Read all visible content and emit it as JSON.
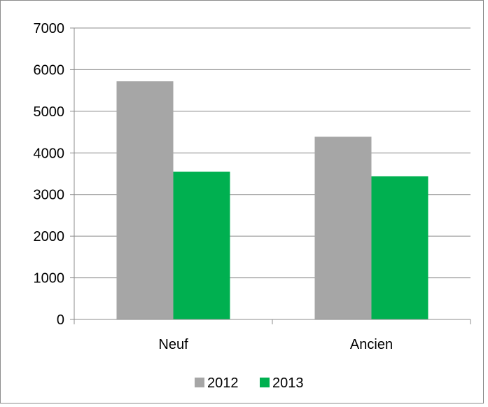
{
  "chart_data": {
    "type": "bar",
    "title": "",
    "xlabel": "",
    "ylabel": "",
    "categories": [
      "Neuf",
      "Ancien"
    ],
    "series": [
      {
        "name": "2012",
        "values": [
          5720,
          4390
        ],
        "color": "#a6a6a6"
      },
      {
        "name": "2013",
        "values": [
          3550,
          3440
        ],
        "color": "#00b050"
      }
    ],
    "ylim": [
      0,
      7000
    ],
    "yticks": [
      "0",
      "1000",
      "2000",
      "3000",
      "4000",
      "5000",
      "6000",
      "7000"
    ],
    "grid": true,
    "legend_position": "bottom"
  }
}
